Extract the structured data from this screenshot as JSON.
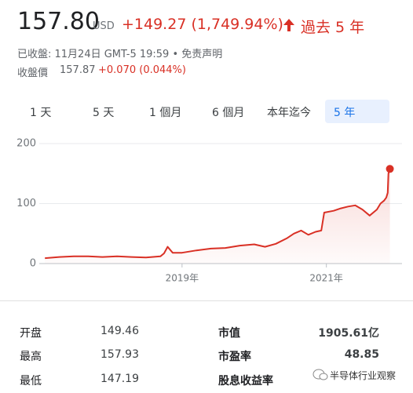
{
  "header": {
    "price": "157.80",
    "currency": "USD",
    "change": "+149.27 (1,749.94%)",
    "period": "過去 5 年",
    "status": "已收盤: 11月24日 GMT-5 19:59 • 免责声明",
    "close_label": "收盤價",
    "close_price": "157.87",
    "close_change": "+0.070 (0.044%)"
  },
  "tabs": [
    "1 天",
    "5 天",
    "1 個月",
    "6 個月",
    "本年迄今",
    "5 年"
  ],
  "chart_data": {
    "type": "line",
    "x": [
      2017.1,
      2017.3,
      2017.5,
      2017.7,
      2017.9,
      2018.1,
      2018.3,
      2018.5,
      2018.7,
      2018.75,
      2018.8,
      2018.87,
      2019.0,
      2019.2,
      2019.4,
      2019.6,
      2019.8,
      2020.0,
      2020.15,
      2020.3,
      2020.45,
      2020.55,
      2020.65,
      2020.75,
      2020.85,
      2020.93,
      2020.97,
      2021.1,
      2021.2,
      2021.3,
      2021.4,
      2021.5,
      2021.6,
      2021.7,
      2021.75,
      2021.8,
      2021.83,
      2021.85,
      2021.86,
      2021.88
    ],
    "series": [
      {
        "color": "#d93025",
        "values": [
          9,
          11,
          12,
          12,
          11,
          12,
          11,
          10,
          12,
          17,
          28,
          18,
          18,
          22,
          25,
          26,
          30,
          32,
          28,
          33,
          42,
          50,
          55,
          48,
          53,
          55,
          85,
          88,
          92,
          95,
          97,
          90,
          80,
          90,
          100,
          105,
          110,
          118,
          150,
          157.8
        ]
      }
    ],
    "xlim": [
      2017.0,
      2021.95
    ],
    "xticks": [
      {
        "value": 2019,
        "label": "2019年"
      },
      {
        "value": 2021,
        "label": "2021年"
      }
    ],
    "ylim": [
      0,
      200
    ],
    "yticks": [
      0,
      100,
      200
    ],
    "grid": true
  },
  "stats": {
    "rows": [
      [
        "开盘",
        "149.46",
        "市值",
        "1905.61亿"
      ],
      [
        "最高",
        "157.93",
        "市盈率",
        "48.85"
      ],
      [
        "最低",
        "147.19",
        "股息收益率",
        ""
      ]
    ]
  },
  "watermark": "半导体行业观察"
}
